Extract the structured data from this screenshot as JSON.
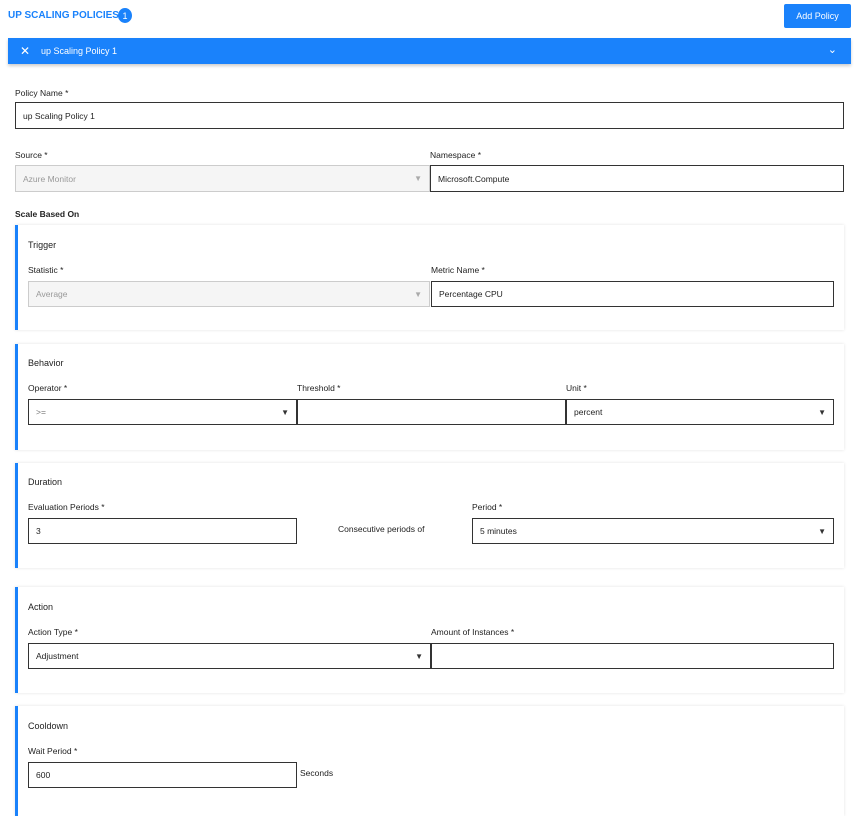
{
  "header": {
    "title": "UP SCALING POLICIES",
    "count": "1",
    "add_button": "Add Policy"
  },
  "policy_bar": {
    "name": "up Scaling Policy 1"
  },
  "form": {
    "policy_name": {
      "label": "Policy Name *",
      "value": "up Scaling Policy 1"
    },
    "source": {
      "label": "Source *",
      "value": "Azure Monitor"
    },
    "namespace": {
      "label": "Namespace *",
      "value": "Microsoft.Compute"
    },
    "scale_based_on": "Scale Based On"
  },
  "trigger": {
    "title": "Trigger",
    "statistic": {
      "label": "Statistic *",
      "value": "Average"
    },
    "metric": {
      "label": "Metric Name *",
      "value": "Percentage CPU"
    }
  },
  "behavior": {
    "title": "Behavior",
    "operator": {
      "label": "Operator *",
      "value": ">="
    },
    "threshold": {
      "label": "Threshold *",
      "value": ""
    },
    "unit": {
      "label": "Unit *",
      "value": "percent"
    }
  },
  "duration": {
    "title": "Duration",
    "eval": {
      "label": "Evaluation Periods *",
      "value": "3"
    },
    "consecutive": "Consecutive periods of",
    "period": {
      "label": "Period *",
      "value": "5 minutes"
    }
  },
  "action": {
    "title": "Action",
    "type": {
      "label": "Action Type *",
      "value": "Adjustment"
    },
    "amount": {
      "label": "Amount of Instances *",
      "value": ""
    }
  },
  "cooldown": {
    "title": "Cooldown",
    "wait": {
      "label": "Wait Period *",
      "value": "600"
    },
    "unit": "Seconds"
  },
  "colors": {
    "accent": "#1a82fb"
  }
}
